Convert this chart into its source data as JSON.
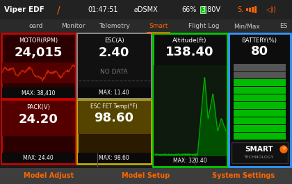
{
  "bg_color": "#1a1a1a",
  "header_bg": "#222222",
  "nav_bg": "#2a2a2a",
  "footer_bg": "#3d3d3d",
  "title_text": "Viper EDF",
  "header_time": "01:47:51",
  "header_dsmx": "⌀DSMX",
  "header_batt": "66%  3.80V",
  "nav_items": [
    "oard",
    "Monitor",
    "Telemetry",
    "Smart",
    "Flight Log",
    "Min/Max",
    "ES"
  ],
  "nav_active": "Smart",
  "nav_active_color": "#ff6600",
  "nav_inactive_color": "#cccccc",
  "footer_items": [
    "Model Adjust",
    "Model Setup",
    "System Settings"
  ],
  "footer_color": "#ff6600",
  "card_border_red": "#cc0000",
  "card_border_green": "#00cc00",
  "card_border_blue": "#3399ff",
  "card_border_yellow": "#bbaa00",
  "card_border_gray": "#888888",
  "motor_label": "MOTOR(RPM)",
  "motor_value": "24,015",
  "motor_max": "MAX: 38,410",
  "pack_label": "PACK(V)",
  "pack_value": "24.20",
  "pack_max": "MAX: 24.40",
  "esc_a_label": "ESC(A)",
  "esc_a_value": "2.40",
  "esc_a_nodata": "NO DATA",
  "esc_a_max": "MAX: 11.40",
  "esc_temp_label": "ESC FET Temp(°F)",
  "esc_temp_value": "98.60",
  "esc_temp_max": "MAX: 98.60",
  "alt_label": "Altitude(ft)",
  "alt_value": "138.40",
  "alt_max": "MAX: 320.40",
  "battery_label": "BATTERY(%)",
  "battery_value": "80",
  "green_bars": 8,
  "gray_bars": 2,
  "total_bars": 10,
  "orange_pencil": "#ff6600",
  "white": "#ffffff",
  "dark_red_bg": "#2a0000",
  "dark_red_wave": "#550000",
  "wave_color": "#cc2200",
  "dark_yellow_bg": "#2a1a00",
  "dark_yellow_mid": "#554400",
  "green_chart_bg": "#0d1a0d",
  "green_fill": "#005500",
  "green_line": "#00aa00"
}
